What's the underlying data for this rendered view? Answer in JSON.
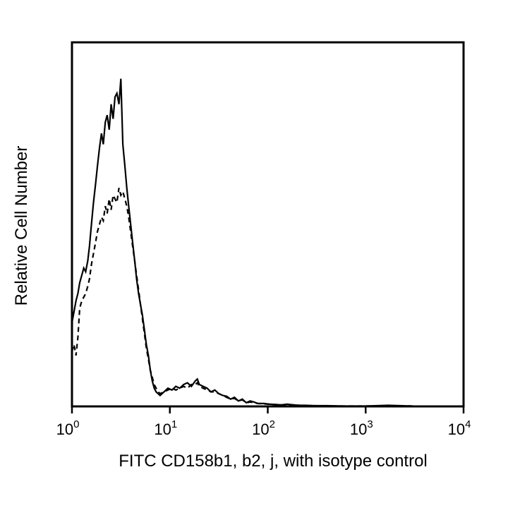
{
  "chart_data": {
    "type": "line",
    "title": "",
    "xlabel": "FITC CD158b1, b2, j, with isotype control",
    "ylabel": "Relative Cell Number",
    "x_scale": "log10",
    "xlim": [
      1,
      10000
    ],
    "ylim": [
      0,
      1
    ],
    "grid": false,
    "legend": "none",
    "x_ticks": [
      {
        "base": "10",
        "exp": "0",
        "value": 1
      },
      {
        "base": "10",
        "exp": "1",
        "value": 10
      },
      {
        "base": "10",
        "exp": "2",
        "value": 100
      },
      {
        "base": "10",
        "exp": "3",
        "value": 1000
      },
      {
        "base": "10",
        "exp": "4",
        "value": 10000
      }
    ],
    "series": [
      {
        "name": "CD158b1, b2, j",
        "style": "solid",
        "color": "#000000",
        "x": [
          1.0,
          1.05,
          1.1,
          1.15,
          1.2,
          1.26,
          1.32,
          1.38,
          1.45,
          1.51,
          1.58,
          1.66,
          1.74,
          1.82,
          1.91,
          2.0,
          2.09,
          2.19,
          2.29,
          2.4,
          2.51,
          2.63,
          2.75,
          2.88,
          3.02,
          3.16,
          3.31,
          3.47,
          3.63,
          3.8,
          3.98,
          4.17,
          4.37,
          4.57,
          4.79,
          5.01,
          5.25,
          5.5,
          5.75,
          6.03,
          6.31,
          6.61,
          6.92,
          7.24,
          7.59,
          7.94,
          8.71,
          9.55,
          10.5,
          11.5,
          12.6,
          13.8,
          15.1,
          16.6,
          18.2,
          19.1,
          20.0,
          21.9,
          24.0,
          26.3,
          28.8,
          31.6,
          34.7,
          38.0,
          41.7,
          45.7,
          50.1,
          55.0,
          60.3,
          66.1,
          72.4,
          79.4,
          91.2,
          105,
          120,
          138,
          158,
          182,
          209,
          240,
          300,
          400,
          600,
          1000,
          1700,
          3000,
          10000
        ],
        "y": [
          0.23,
          0.26,
          0.29,
          0.31,
          0.34,
          0.36,
          0.38,
          0.37,
          0.4,
          0.44,
          0.5,
          0.56,
          0.61,
          0.66,
          0.71,
          0.75,
          0.72,
          0.78,
          0.8,
          0.76,
          0.83,
          0.79,
          0.85,
          0.86,
          0.83,
          0.9,
          0.72,
          0.66,
          0.6,
          0.55,
          0.5,
          0.45,
          0.4,
          0.35,
          0.31,
          0.28,
          0.25,
          0.21,
          0.17,
          0.14,
          0.1,
          0.07,
          0.05,
          0.04,
          0.035,
          0.03,
          0.04,
          0.05,
          0.045,
          0.055,
          0.05,
          0.06,
          0.065,
          0.055,
          0.07,
          0.075,
          0.06,
          0.055,
          0.05,
          0.04,
          0.045,
          0.035,
          0.03,
          0.028,
          0.02,
          0.025,
          0.015,
          0.02,
          0.01,
          0.015,
          0.012,
          0.008,
          0.008,
          0.006,
          0.005,
          0.004,
          0.006,
          0.004,
          0.003,
          0.003,
          0.002,
          0.002,
          0.001,
          0.001,
          0.003,
          0.001,
          0.0
        ]
      },
      {
        "name": "Isotype control",
        "style": "dashed",
        "color": "#000000",
        "x": [
          1.0,
          1.05,
          1.1,
          1.15,
          1.2,
          1.26,
          1.32,
          1.38,
          1.45,
          1.51,
          1.58,
          1.66,
          1.74,
          1.82,
          1.91,
          2.0,
          2.09,
          2.19,
          2.29,
          2.4,
          2.51,
          2.63,
          2.75,
          2.88,
          3.02,
          3.16,
          3.31,
          3.47,
          3.63,
          3.8,
          3.98,
          4.17,
          4.37,
          4.57,
          4.79,
          5.01,
          5.25,
          5.5,
          5.75,
          6.03,
          6.31,
          6.61,
          6.92,
          7.24,
          7.59,
          7.94,
          8.71,
          9.55,
          10.5,
          11.5,
          12.6,
          13.8,
          15.1,
          16.6,
          18.2,
          19.1,
          20.0,
          21.9,
          24.0,
          26.3,
          28.8,
          31.6,
          34.7,
          38.0,
          41.7,
          45.7,
          50.1,
          55.0,
          60.3,
          66.1,
          72.4,
          79.4,
          91.2,
          105,
          120,
          138,
          158,
          182,
          209,
          240,
          300,
          400,
          600,
          1000,
          1700,
          3000,
          10000
        ],
        "y": [
          0.15,
          0.17,
          0.14,
          0.19,
          0.27,
          0.29,
          0.3,
          0.31,
          0.33,
          0.35,
          0.39,
          0.42,
          0.45,
          0.48,
          0.5,
          0.52,
          0.51,
          0.55,
          0.53,
          0.57,
          0.54,
          0.58,
          0.57,
          0.56,
          0.6,
          0.58,
          0.59,
          0.57,
          0.55,
          0.52,
          0.48,
          0.44,
          0.4,
          0.36,
          0.32,
          0.28,
          0.24,
          0.2,
          0.16,
          0.13,
          0.1,
          0.08,
          0.06,
          0.05,
          0.04,
          0.035,
          0.04,
          0.045,
          0.05,
          0.045,
          0.05,
          0.055,
          0.05,
          0.06,
          0.06,
          0.065,
          0.055,
          0.05,
          0.045,
          0.04,
          0.04,
          0.035,
          0.03,
          0.025,
          0.02,
          0.022,
          0.015,
          0.018,
          0.01,
          0.012,
          0.01,
          0.008,
          0.007,
          0.006,
          0.005,
          0.004,
          0.005,
          0.004,
          0.003,
          0.002,
          0.002,
          0.001,
          0.001,
          0.001,
          0.002,
          0.001,
          0.0
        ]
      }
    ]
  }
}
